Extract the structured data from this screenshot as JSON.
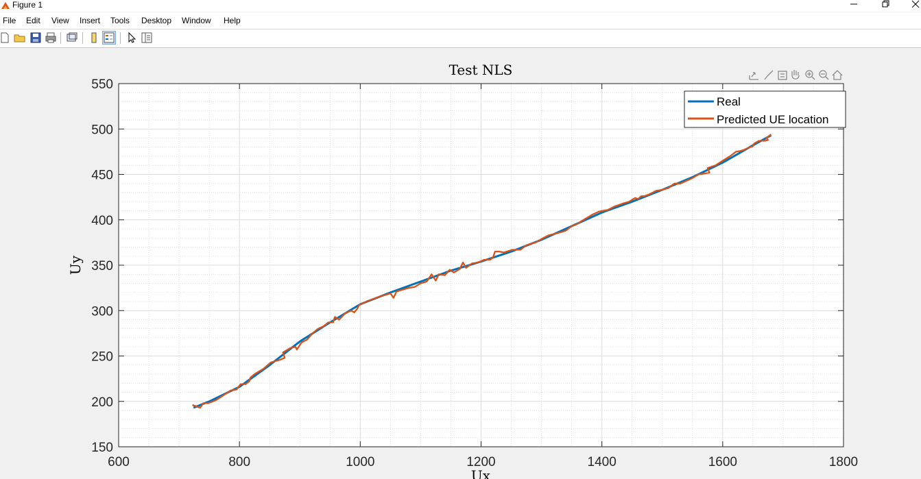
{
  "window": {
    "title": "Figure 1"
  },
  "menu": [
    "File",
    "Edit",
    "View",
    "Insert",
    "Tools",
    "Desktop",
    "Window",
    "Help"
  ],
  "toolbar_icons": [
    "new-figure-icon",
    "open-file-icon",
    "save-icon",
    "print-icon",
    "link-figure-icon",
    "colorbar-icon",
    "legend-icon",
    "edit-plot-icon",
    "property-inspector-icon"
  ],
  "axes_toolbar_icons": [
    "export-icon",
    "brush-icon",
    "datatip-icon",
    "pan-icon",
    "zoom-in-icon",
    "zoom-out-icon",
    "home-icon"
  ],
  "colors": {
    "real": "#0072BD",
    "predicted": "#D95319"
  },
  "chart_data": {
    "type": "line",
    "title": "Test NLS",
    "xlabel": "Ux",
    "ylabel": "Uy",
    "xlim": [
      600,
      1800
    ],
    "ylim": [
      150,
      550
    ],
    "xticks": [
      600,
      800,
      1000,
      1200,
      1400,
      1600,
      1800
    ],
    "yticks": [
      150,
      200,
      250,
      300,
      350,
      400,
      450,
      500,
      550
    ],
    "grid": true,
    "minor_grid": true,
    "legend_position": "top-right",
    "series": [
      {
        "name": "Real",
        "points": [
          [
            724,
            193
          ],
          [
            750,
            200
          ],
          [
            800,
            216
          ],
          [
            850,
            240
          ],
          [
            900,
            266
          ],
          [
            950,
            287
          ],
          [
            1000,
            307
          ],
          [
            1050,
            320
          ],
          [
            1100,
            332
          ],
          [
            1150,
            344
          ],
          [
            1200,
            354
          ],
          [
            1250,
            365
          ],
          [
            1300,
            378
          ],
          [
            1350,
            393
          ],
          [
            1400,
            408
          ],
          [
            1450,
            420
          ],
          [
            1500,
            433
          ],
          [
            1550,
            447
          ],
          [
            1600,
            463
          ],
          [
            1650,
            482
          ],
          [
            1680,
            493
          ]
        ]
      },
      {
        "name": "Predicted UE location",
        "points": [
          [
            722,
            196
          ],
          [
            735,
            193
          ],
          [
            740,
            198
          ],
          [
            748,
            198
          ],
          [
            760,
            201
          ],
          [
            772,
            206
          ],
          [
            785,
            212
          ],
          [
            795,
            213
          ],
          [
            802,
            219
          ],
          [
            810,
            219
          ],
          [
            816,
            222
          ],
          [
            818,
            226
          ],
          [
            825,
            230
          ],
          [
            840,
            236
          ],
          [
            852,
            243
          ],
          [
            868,
            246
          ],
          [
            875,
            248
          ],
          [
            872,
            254
          ],
          [
            885,
            259
          ],
          [
            893,
            260
          ],
          [
            895,
            257
          ],
          [
            903,
            265
          ],
          [
            912,
            268
          ],
          [
            921,
            275
          ],
          [
            930,
            280
          ],
          [
            940,
            283
          ],
          [
            947,
            287
          ],
          [
            955,
            287
          ],
          [
            958,
            293
          ],
          [
            965,
            290
          ],
          [
            975,
            297
          ],
          [
            985,
            300
          ],
          [
            990,
            298
          ],
          [
            995,
            302
          ],
          [
            998,
            306
          ],
          [
            1010,
            310
          ],
          [
            1030,
            315
          ],
          [
            1050,
            319
          ],
          [
            1055,
            314
          ],
          [
            1060,
            321
          ],
          [
            1080,
            325
          ],
          [
            1090,
            326
          ],
          [
            1100,
            330
          ],
          [
            1110,
            332
          ],
          [
            1118,
            340
          ],
          [
            1125,
            333
          ],
          [
            1130,
            340
          ],
          [
            1140,
            339
          ],
          [
            1148,
            345
          ],
          [
            1155,
            342
          ],
          [
            1165,
            346
          ],
          [
            1170,
            353
          ],
          [
            1175,
            347
          ],
          [
            1185,
            352
          ],
          [
            1195,
            353
          ],
          [
            1205,
            356
          ],
          [
            1215,
            356
          ],
          [
            1220,
            359
          ],
          [
            1223,
            365
          ],
          [
            1230,
            365
          ],
          [
            1238,
            364
          ],
          [
            1252,
            367
          ],
          [
            1265,
            367
          ],
          [
            1275,
            372
          ],
          [
            1290,
            375
          ],
          [
            1303,
            380
          ],
          [
            1312,
            383
          ],
          [
            1325,
            385
          ],
          [
            1340,
            388
          ],
          [
            1350,
            393
          ],
          [
            1358,
            395
          ],
          [
            1365,
            398
          ],
          [
            1375,
            402
          ],
          [
            1385,
            406
          ],
          [
            1395,
            409
          ],
          [
            1410,
            411
          ],
          [
            1422,
            415
          ],
          [
            1435,
            418
          ],
          [
            1445,
            420
          ],
          [
            1455,
            424
          ],
          [
            1460,
            423
          ],
          [
            1465,
            426
          ],
          [
            1470,
            426
          ],
          [
            1478,
            428
          ],
          [
            1490,
            432
          ],
          [
            1500,
            433
          ],
          [
            1510,
            435
          ],
          [
            1520,
            440
          ],
          [
            1530,
            440
          ],
          [
            1540,
            443
          ],
          [
            1550,
            446
          ],
          [
            1560,
            450
          ],
          [
            1570,
            451
          ],
          [
            1578,
            452
          ],
          [
            1575,
            457
          ],
          [
            1588,
            460
          ],
          [
            1600,
            465
          ],
          [
            1612,
            470
          ],
          [
            1622,
            475
          ],
          [
            1630,
            476
          ],
          [
            1635,
            477
          ],
          [
            1645,
            480
          ],
          [
            1650,
            481
          ],
          [
            1652,
            484
          ],
          [
            1660,
            487
          ],
          [
            1670,
            487
          ],
          [
            1675,
            488
          ],
          [
            1672,
            490
          ],
          [
            1680,
            494
          ]
        ]
      }
    ]
  }
}
